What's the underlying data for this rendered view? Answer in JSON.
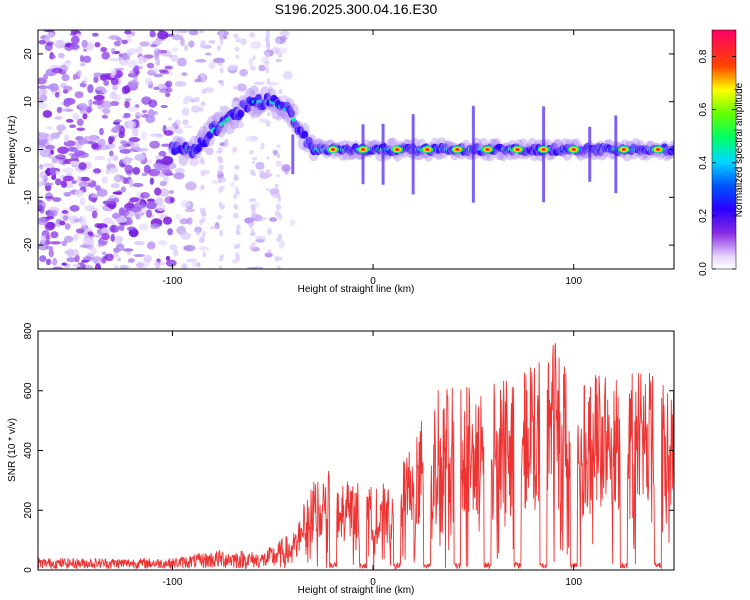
{
  "title": "S196.2025.300.04.16.E30",
  "chart_data": [
    {
      "type": "heatmap",
      "xlabel": "Height of straight line (km)",
      "ylabel": "Frequency (Hz)",
      "xlim": [
        -167,
        150
      ],
      "ylim": [
        -25,
        25
      ],
      "xticks": [
        -100,
        0,
        100
      ],
      "yticks": [
        -20,
        -10,
        0,
        10,
        20
      ],
      "colorbar": {
        "label": "Normalized spectral amplitude",
        "range": [
          0.0,
          0.9
        ],
        "ticks": [
          "0.0",
          "0.2",
          "0.4",
          "0.6",
          "0.8"
        ]
      },
      "ridge": [
        {
          "x": -100,
          "y": 0
        },
        {
          "x": -88,
          "y": 0
        },
        {
          "x": -80,
          "y": 4
        },
        {
          "x": -70,
          "y": 7
        },
        {
          "x": -60,
          "y": 10
        },
        {
          "x": -50,
          "y": 10
        },
        {
          "x": -42,
          "y": 8
        },
        {
          "x": -35,
          "y": 3
        },
        {
          "x": -30,
          "y": 0
        },
        {
          "x": 150,
          "y": 0
        }
      ],
      "hot_spots_x": [
        -20,
        -5,
        12,
        27,
        42,
        57,
        72,
        85,
        100,
        125,
        142
      ]
    },
    {
      "type": "line",
      "xlabel": "Height of straight line (km)",
      "ylabel": "SNR (10 * v/v)",
      "xlim": [
        -167,
        150
      ],
      "ylim": [
        0,
        800
      ],
      "xticks": [
        -100,
        0,
        100
      ],
      "yticks": [
        0,
        200,
        400,
        600,
        800
      ],
      "series": [
        {
          "color": "#ee3333",
          "envelope": [
            {
              "x": -167,
              "y": 40
            },
            {
              "x": -100,
              "y": 40
            },
            {
              "x": -75,
              "y": 70
            },
            {
              "x": -55,
              "y": 60
            },
            {
              "x": -40,
              "y": 130
            },
            {
              "x": -30,
              "y": 300
            },
            {
              "x": -20,
              "y": 340
            },
            {
              "x": -10,
              "y": 300
            },
            {
              "x": 0,
              "y": 280
            },
            {
              "x": 10,
              "y": 300
            },
            {
              "x": 20,
              "y": 430
            },
            {
              "x": 30,
              "y": 600
            },
            {
              "x": 45,
              "y": 620
            },
            {
              "x": 60,
              "y": 640
            },
            {
              "x": 75,
              "y": 660
            },
            {
              "x": 88,
              "y": 800
            },
            {
              "x": 100,
              "y": 670
            },
            {
              "x": 120,
              "y": 650
            },
            {
              "x": 135,
              "y": 680
            },
            {
              "x": 150,
              "y": 600
            }
          ],
          "dips_x": [
            -20,
            -5,
            12,
            27,
            42,
            57,
            72,
            85,
            100,
            125,
            142
          ]
        }
      ]
    }
  ]
}
